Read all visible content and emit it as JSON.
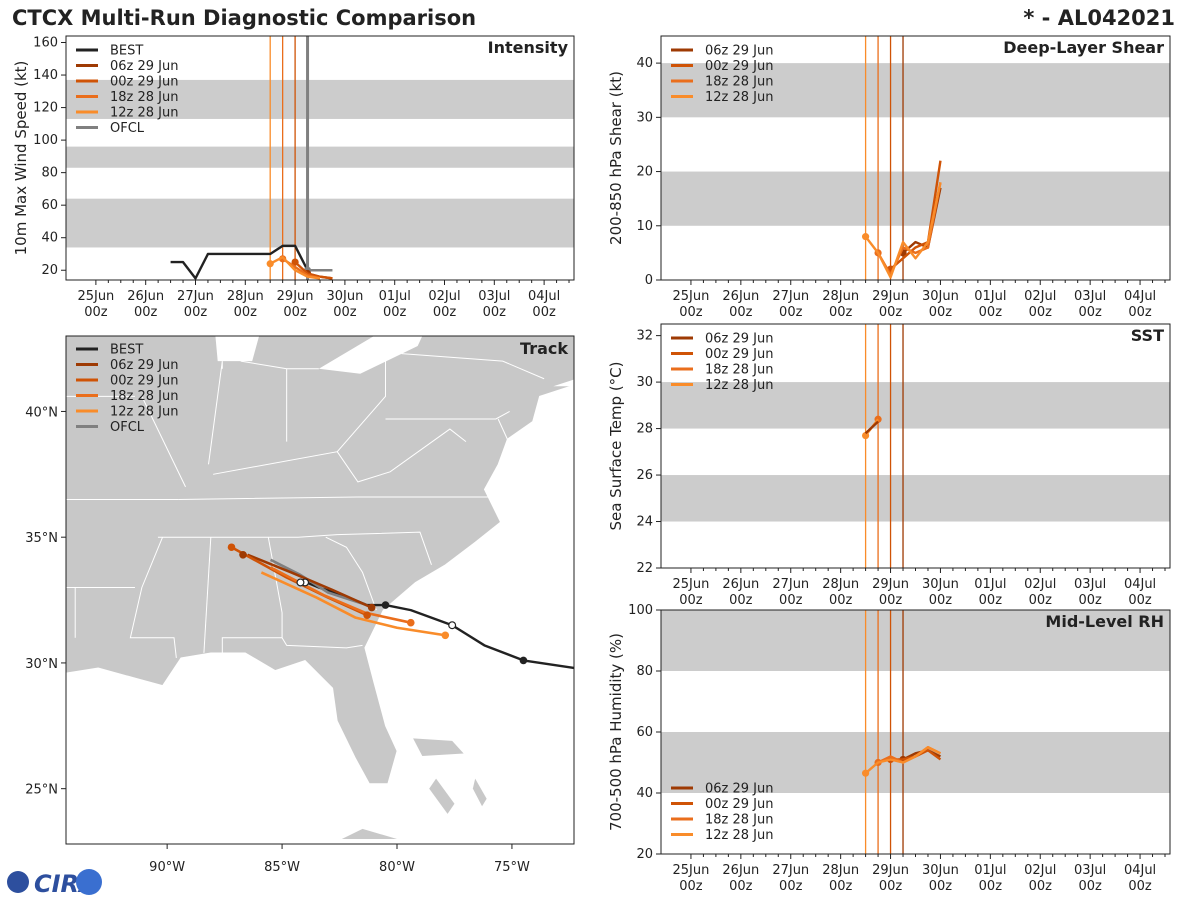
{
  "header": {
    "title": "CTCX Multi-Run Diagnostic Comparison",
    "storm_id": "* - AL042021"
  },
  "logo": {
    "text": "CIRA"
  },
  "colors": {
    "best": "#222222",
    "ofcl": "#808080",
    "run_06z": "#9e3a03",
    "run_00z": "#cf5306",
    "run_18z": "#ea6e1c",
    "run_12z": "#f98c2a",
    "band": "#cccccc",
    "land": "#c8c8c8",
    "water": "#ffffff"
  },
  "time_axis": {
    "labels": [
      [
        "25Jun",
        "00z"
      ],
      [
        "26Jun",
        "00z"
      ],
      [
        "27Jun",
        "00z"
      ],
      [
        "28Jun",
        "00z"
      ],
      [
        "29Jun",
        "00z"
      ],
      [
        "30Jun",
        "00z"
      ],
      [
        "01Jul",
        "00z"
      ],
      [
        "02Jul",
        "00z"
      ],
      [
        "03Jul",
        "00z"
      ],
      [
        "04Jul",
        "00z"
      ]
    ],
    "range_days": [
      -0.6,
      9.6
    ]
  },
  "init_lines_days": [
    3.5,
    3.75,
    4.0,
    4.25
  ],
  "chart_data": [
    {
      "id": "intensity",
      "type": "line",
      "title": "Intensity",
      "ylabel": "10m Max Wind Speed (kt)",
      "ylim": [
        14,
        164
      ],
      "yticks": [
        20,
        40,
        60,
        80,
        100,
        120,
        140,
        160
      ],
      "bands": [
        [
          34,
          64
        ],
        [
          83,
          96
        ],
        [
          113,
          137
        ]
      ],
      "legend": [
        "BEST",
        "06z 29 Jun",
        "00z 29 Jun",
        "18z 28 Jun",
        "12z 28 Jun",
        "OFCL"
      ],
      "series": [
        {
          "name": "BEST",
          "key": "best",
          "points": [
            [
              1.5,
              25
            ],
            [
              1.75,
              25
            ],
            [
              2.0,
              15
            ],
            [
              2.25,
              30
            ],
            [
              2.5,
              30
            ],
            [
              2.75,
              30
            ],
            [
              3.0,
              30
            ],
            [
              3.25,
              30
            ],
            [
              3.5,
              30
            ],
            [
              3.75,
              35
            ],
            [
              4.0,
              35
            ],
            [
              4.25,
              20
            ]
          ],
          "markers": []
        },
        {
          "name": "OFCL",
          "key": "ofcl",
          "points": [
            [
              4.25,
              20
            ],
            [
              4.5,
              20
            ],
            [
              4.75,
              20
            ]
          ],
          "markers": [
            [
              4.25,
              20
            ]
          ],
          "heavy_line": 4.25
        },
        {
          "name": "06z 29 Jun",
          "key": "run_06z",
          "points": [
            [
              4.25,
              18
            ],
            [
              4.5,
              16
            ],
            [
              4.75,
              15
            ]
          ],
          "markers": [
            [
              4.25,
              18
            ]
          ]
        },
        {
          "name": "00z 29 Jun",
          "key": "run_00z",
          "points": [
            [
              4.0,
              25
            ],
            [
              4.25,
              18
            ],
            [
              4.5,
              16
            ],
            [
              4.75,
              15
            ]
          ],
          "markers": [
            [
              4.0,
              25
            ]
          ]
        },
        {
          "name": "18z 28 Jun",
          "key": "run_18z",
          "points": [
            [
              3.75,
              27
            ],
            [
              4.0,
              22
            ],
            [
              4.25,
              17
            ],
            [
              4.5,
              15
            ]
          ],
          "markers": [
            [
              3.75,
              27
            ]
          ]
        },
        {
          "name": "12z 28 Jun",
          "key": "run_12z",
          "points": [
            [
              3.5,
              24
            ],
            [
              3.75,
              28
            ],
            [
              4.0,
              20
            ],
            [
              4.25,
              16
            ],
            [
              4.5,
              15
            ]
          ],
          "markers": [
            [
              3.5,
              24
            ]
          ]
        }
      ]
    },
    {
      "id": "shear",
      "type": "line",
      "title": "Deep-Layer Shear",
      "ylabel": "200-850 hPa Shear (kt)",
      "ylim": [
        0,
        45
      ],
      "yticks": [
        0,
        10,
        20,
        30,
        40
      ],
      "bands": [
        [
          10,
          20
        ],
        [
          30,
          40
        ]
      ],
      "legend": [
        "06z 29 Jun",
        "00z 29 Jun",
        "18z 28 Jun",
        "12z 28 Jun"
      ],
      "series": [
        {
          "name": "06z 29 Jun",
          "key": "run_06z",
          "points": [
            [
              4.25,
              5
            ],
            [
              4.5,
              7
            ],
            [
              4.75,
              6
            ],
            [
              5.0,
              17
            ]
          ],
          "markers": [
            [
              4.25,
              5
            ]
          ]
        },
        {
          "name": "00z 29 Jun",
          "key": "run_00z",
          "points": [
            [
              4.0,
              2
            ],
            [
              4.25,
              4
            ],
            [
              4.5,
              6
            ],
            [
              4.75,
              7
            ],
            [
              5.0,
              22
            ]
          ],
          "markers": [
            [
              4.0,
              2
            ]
          ]
        },
        {
          "name": "18z 28 Jun",
          "key": "run_18z",
          "points": [
            [
              3.75,
              5
            ],
            [
              4.0,
              1
            ],
            [
              4.25,
              6
            ],
            [
              4.5,
              5
            ],
            [
              4.75,
              6
            ],
            [
              5.0,
              18
            ]
          ],
          "markers": [
            [
              3.75,
              5
            ]
          ]
        },
        {
          "name": "12z 28 Jun",
          "key": "run_12z",
          "points": [
            [
              3.5,
              8
            ],
            [
              3.75,
              5
            ],
            [
              4.0,
              0.5
            ],
            [
              4.25,
              7
            ],
            [
              4.5,
              4
            ],
            [
              4.75,
              7
            ],
            [
              5.0,
              18
            ]
          ],
          "markers": [
            [
              3.5,
              8
            ]
          ]
        }
      ]
    },
    {
      "id": "sst",
      "type": "line",
      "title": "SST",
      "ylabel": "Sea Surface Temp (°C)",
      "ylim": [
        22,
        32.5
      ],
      "yticks": [
        22,
        24,
        26,
        28,
        30,
        32
      ],
      "bands": [
        [
          24,
          26
        ],
        [
          28,
          30
        ]
      ],
      "legend": [
        "06z 29 Jun",
        "00z 29 Jun",
        "18z 28 Jun",
        "12z 28 Jun"
      ],
      "series": [
        {
          "name": "18z 28 Jun",
          "key": "run_18z",
          "points": [
            [
              3.75,
              28.4
            ]
          ],
          "markers": [
            [
              3.75,
              28.4
            ]
          ]
        },
        {
          "name": "12z 28 Jun",
          "key": "run_12z",
          "points": [
            [
              3.5,
              27.7
            ],
            [
              3.75,
              28.4
            ]
          ],
          "markers": [
            [
              3.5,
              27.7
            ]
          ]
        },
        {
          "name": "06z 29 Jun",
          "key": "run_06z",
          "points": [
            [
              3.5,
              27.8
            ],
            [
              3.75,
              28.3
            ]
          ],
          "markers": []
        }
      ]
    },
    {
      "id": "rh",
      "type": "line",
      "title": "Mid-Level RH",
      "ylabel": "700-500 hPa Humidity (%)",
      "ylim": [
        20,
        100
      ],
      "yticks": [
        20,
        40,
        60,
        80,
        100
      ],
      "bands": [
        [
          40,
          60
        ],
        [
          80,
          100
        ]
      ],
      "legend": [
        "06z 29 Jun",
        "00z 29 Jun",
        "18z 28 Jun",
        "12z 28 Jun"
      ],
      "series": [
        {
          "name": "06z 29 Jun",
          "key": "run_06z",
          "points": [
            [
              4.25,
              51
            ],
            [
              4.5,
              53
            ],
            [
              4.75,
              54
            ],
            [
              5.0,
              52
            ]
          ],
          "markers": [
            [
              4.25,
              51
            ]
          ]
        },
        {
          "name": "00z 29 Jun",
          "key": "run_00z",
          "points": [
            [
              4.0,
              51
            ],
            [
              4.25,
              51
            ],
            [
              4.5,
              52
            ],
            [
              4.75,
              54
            ],
            [
              5.0,
              51
            ]
          ],
          "markers": [
            [
              4.0,
              51
            ]
          ]
        },
        {
          "name": "18z 28 Jun",
          "key": "run_18z",
          "points": [
            [
              3.75,
              50
            ],
            [
              4.0,
              52
            ],
            [
              4.25,
              50
            ],
            [
              4.5,
              52
            ],
            [
              4.75,
              55
            ],
            [
              5.0,
              53
            ]
          ],
          "markers": [
            [
              3.75,
              50
            ]
          ]
        },
        {
          "name": "12z 28 Jun",
          "key": "run_12z",
          "points": [
            [
              3.5,
              46.5
            ],
            [
              3.75,
              50
            ],
            [
              4.0,
              51
            ],
            [
              4.25,
              50
            ],
            [
              4.5,
              52
            ],
            [
              4.75,
              55
            ],
            [
              5.0,
              53
            ]
          ],
          "markers": [
            [
              3.5,
              46.5
            ]
          ]
        }
      ]
    },
    {
      "id": "track",
      "type": "map",
      "title": "Track",
      "lon_range": [
        -94.4,
        -72.3
      ],
      "lat_range": [
        22.8,
        43.0
      ],
      "lon_ticks": [
        -90,
        -85,
        -80,
        -75
      ],
      "lon_labels": [
        "90°W",
        "85°W",
        "80°W",
        "75°W"
      ],
      "lat_ticks": [
        25,
        30,
        35,
        40
      ],
      "lat_labels": [
        "25°N",
        "30°N",
        "35°N",
        "40°N"
      ],
      "legend": [
        "BEST",
        "06z 29 Jun",
        "00z 29 Jun",
        "18z 28 Jun",
        "12z 28 Jun",
        "OFCL"
      ],
      "series": [
        {
          "name": "BEST",
          "key": "best",
          "points": [
            [
              -72.3,
              29.8
            ],
            [
              -74.5,
              30.1
            ],
            [
              -76.2,
              30.7
            ],
            [
              -77.6,
              31.5
            ],
            [
              -79.4,
              32.1
            ],
            [
              -80.5,
              32.3
            ],
            [
              -81.3,
              32.3
            ],
            [
              -82.4,
              32.7
            ],
            [
              -83.4,
              33.0
            ],
            [
              -84.2,
              33.3
            ]
          ],
          "filled": [
            [
              -74.5,
              30.1
            ],
            [
              -80.5,
              32.3
            ]
          ],
          "open": [
            [
              -77.6,
              31.5
            ],
            [
              -84.0,
              33.2
            ]
          ]
        },
        {
          "name": "OFCL",
          "key": "ofcl",
          "points": [
            [
              -81.3,
              32.3
            ],
            [
              -83.0,
              32.8
            ],
            [
              -84.2,
              33.5
            ],
            [
              -85.5,
              34.1
            ]
          ],
          "filled": [],
          "open": [
            [
              -84.2,
              33.2
            ]
          ]
        },
        {
          "name": "06z 29 Jun",
          "key": "run_06z",
          "points": [
            [
              -81.1,
              32.2
            ],
            [
              -82.8,
              32.9
            ],
            [
              -84.6,
              33.6
            ],
            [
              -86.5,
              34.3
            ]
          ],
          "filled": [
            [
              -86.7,
              34.3
            ],
            [
              -81.1,
              32.2
            ]
          ],
          "open": []
        },
        {
          "name": "00z 29 Jun",
          "key": "run_00z",
          "points": [
            [
              -81.3,
              31.9
            ],
            [
              -83.0,
              32.6
            ],
            [
              -84.8,
              33.4
            ],
            [
              -87.2,
              34.6
            ]
          ],
          "filled": [
            [
              -87.2,
              34.6
            ],
            [
              -81.3,
              31.9
            ]
          ],
          "open": []
        },
        {
          "name": "18z 28 Jun",
          "key": "run_18z",
          "points": [
            [
              -79.4,
              31.6
            ],
            [
              -81.4,
              32.0
            ],
            [
              -83.2,
              32.7
            ],
            [
              -85.5,
              33.8
            ]
          ],
          "filled": [
            [
              -79.4,
              31.6
            ]
          ],
          "open": []
        },
        {
          "name": "12z 28 Jun",
          "key": "run_12z",
          "points": [
            [
              -77.9,
              31.1
            ],
            [
              -80.0,
              31.4
            ],
            [
              -81.8,
              31.8
            ],
            [
              -83.5,
              32.6
            ],
            [
              -85.9,
              33.6
            ]
          ],
          "filled": [
            [
              -77.9,
              31.1
            ]
          ],
          "open": []
        }
      ]
    }
  ]
}
